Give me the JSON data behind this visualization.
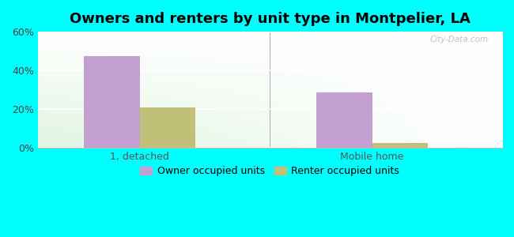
{
  "title": "Owners and renters by unit type in Montpelier, LA",
  "categories": [
    "1, detached",
    "Mobile home"
  ],
  "owner_values": [
    47.5,
    28.5
  ],
  "renter_values": [
    21.0,
    2.5
  ],
  "owner_color": "#c4a0d0",
  "renter_color": "#c0c078",
  "ylim": [
    0,
    60
  ],
  "yticks": [
    0,
    20,
    40,
    60
  ],
  "ytick_labels": [
    "0%",
    "20%",
    "40%",
    "60%"
  ],
  "bg_color": "#00ffff",
  "bar_width": 0.12,
  "group_positions": [
    0.22,
    0.72
  ],
  "legend_labels": [
    "Owner occupied units",
    "Renter occupied units"
  ],
  "watermark": "City-Data.com",
  "title_fontsize": 13,
  "axis_fontsize": 9,
  "legend_fontsize": 9
}
